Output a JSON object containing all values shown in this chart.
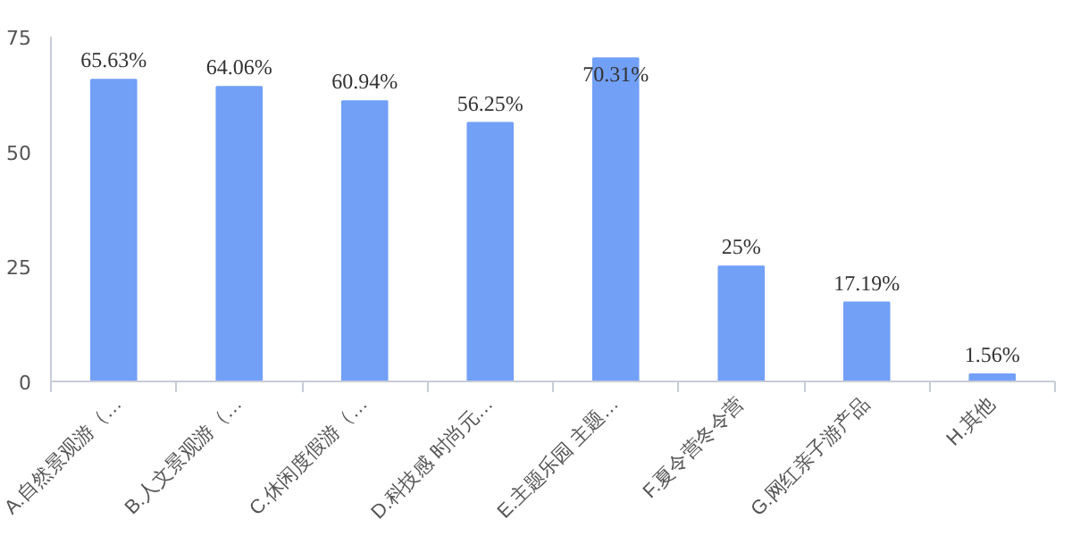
{
  "chart_data": {
    "type": "bar",
    "categories": [
      "A.自然景观游（…",
      "B.人文景观游（…",
      "C.休闲度假游（…",
      "D.科技感 时尚元…",
      "E.主题乐园 主题…",
      "F.夏令营冬令营",
      "G.网红亲子游产品",
      "H.其他"
    ],
    "values": [
      65.63,
      64.06,
      60.94,
      56.25,
      70.31,
      25,
      17.19,
      1.56
    ],
    "value_labels": [
      "65.63%",
      "64.06%",
      "60.94%",
      "56.25%",
      "70.31%",
      "25%",
      "17.19%",
      "1.56%"
    ],
    "color": "#72a0f7",
    "ylim": [
      0,
      75
    ],
    "yticks": [
      0,
      25,
      50,
      75
    ],
    "grid": false
  }
}
